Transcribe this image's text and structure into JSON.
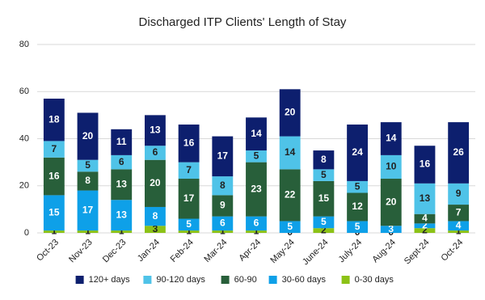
{
  "chart_data": {
    "type": "stacked_bar",
    "title": "Discharged ITP Clients' Length of Stay",
    "categories": [
      "Oct-23",
      "Nov-23",
      "Dec-23",
      "Jan-24",
      "Feb-24",
      "Mar-24",
      "Apr-24",
      "May-24",
      "June-24",
      "July-24",
      "Aug-24",
      "Sept-24",
      "Oct-24"
    ],
    "series": [
      {
        "name": "120+ days",
        "color": "#0d1f6e",
        "values": [
          18,
          20,
          11,
          13,
          16,
          17,
          14,
          20,
          8,
          24,
          14,
          16,
          26
        ]
      },
      {
        "name": "90-120 days",
        "color": "#4fc3e8",
        "values": [
          7,
          5,
          6,
          6,
          7,
          8,
          5,
          14,
          5,
          5,
          10,
          13,
          9
        ]
      },
      {
        "name": "60-90",
        "color": "#285f3a",
        "values": [
          16,
          8,
          13,
          20,
          17,
          9,
          23,
          22,
          15,
          12,
          20,
          4,
          7
        ]
      },
      {
        "name": "30-60 days",
        "color": "#0ea0e8",
        "values": [
          15,
          17,
          13,
          8,
          5,
          6,
          6,
          5,
          5,
          5,
          3,
          2,
          4
        ]
      },
      {
        "name": "0-30 days",
        "color": "#8cc216",
        "values": [
          1,
          1,
          1,
          3,
          1,
          1,
          1,
          0,
          2,
          0,
          0,
          2,
          1
        ]
      }
    ],
    "ylim": [
      0,
      80
    ],
    "yticks": [
      0,
      20,
      40,
      60,
      80
    ],
    "grid": true,
    "legend": "bottom"
  }
}
